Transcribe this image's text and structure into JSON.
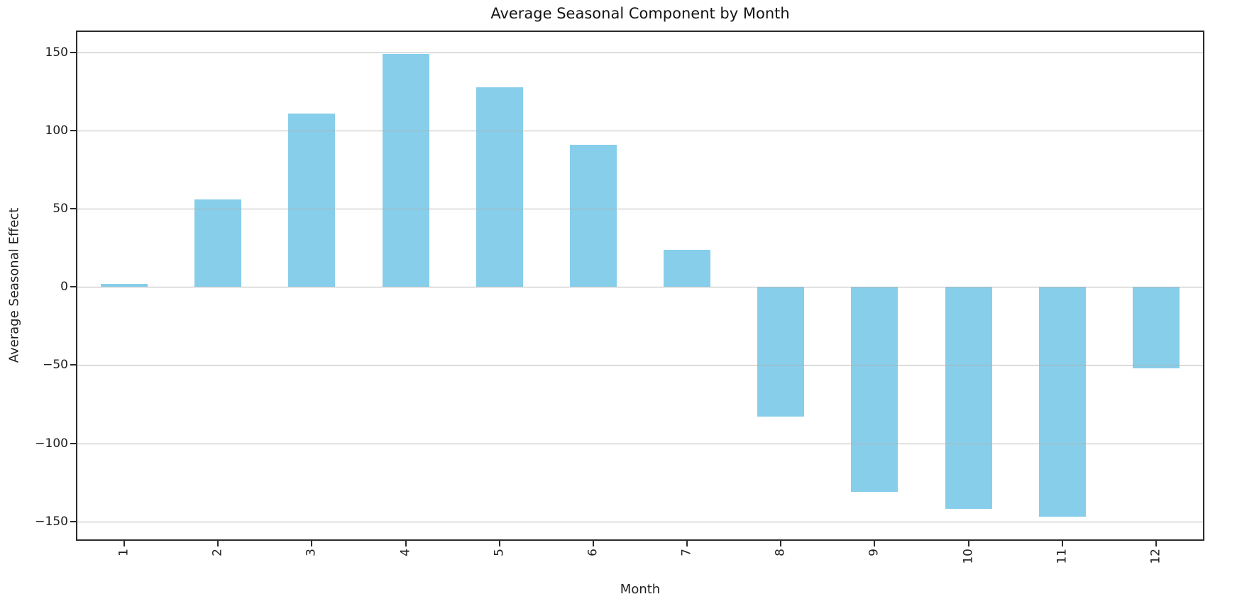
{
  "chart_data": {
    "type": "bar",
    "title": "Average Seasonal Component by Month",
    "xlabel": "Month",
    "ylabel": "Average Seasonal Effect",
    "categories": [
      "1",
      "2",
      "3",
      "4",
      "5",
      "6",
      "7",
      "8",
      "9",
      "10",
      "11",
      "12"
    ],
    "values": [
      1.8,
      56,
      111,
      149,
      128,
      91,
      24,
      -83,
      -131,
      -142,
      -147,
      -52
    ],
    "ylim": [
      -161.5,
      163.2
    ],
    "yticks": [
      {
        "value": 150,
        "label": "150"
      },
      {
        "value": 100,
        "label": "100"
      },
      {
        "value": 50,
        "label": "50"
      },
      {
        "value": 0,
        "label": "0"
      },
      {
        "value": -50,
        "label": "−50"
      },
      {
        "value": -100,
        "label": "−100"
      },
      {
        "value": -150,
        "label": "−150"
      }
    ],
    "xtick_rotation": 90,
    "grid": "horizontal",
    "grid_above_bars": true,
    "legend": "none",
    "bar_width_fraction": 0.5,
    "colors": {
      "bar": "#87CEEB",
      "grid": "#b0b0b0",
      "axis": "#2b2b2b",
      "text": "#1f1f1f",
      "background": "#ffffff"
    }
  }
}
